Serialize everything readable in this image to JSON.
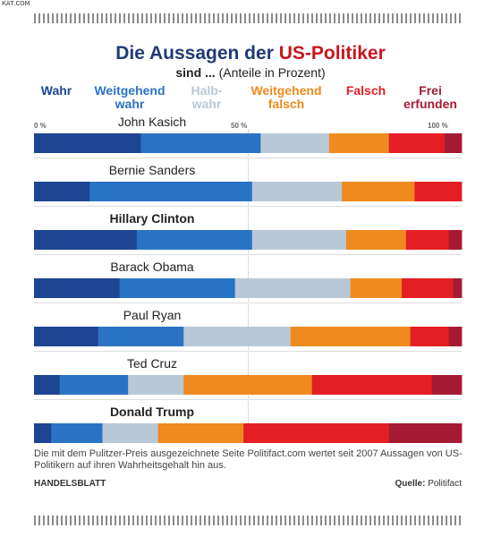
{
  "corner_logo": "КАТ.COM",
  "title": {
    "part1": "Die Aussagen der",
    "part2": "US-Politiker"
  },
  "subtitle": {
    "bold": "sind ...",
    "rest": "(Anteile in Prozent)"
  },
  "colors": {
    "Wahr": "#1e4494",
    "Weitgehend wahr": "#2a73c4",
    "Halb-wahr": "#b9c8d6",
    "Weitgehend falsch": "#ee8a1e",
    "Falsch": "#e31e24",
    "Frei erfunden": "#a51b32"
  },
  "axis": {
    "tick0": "0 %",
    "tick50": "50 %",
    "tick100": "100 %"
  },
  "chart_data": {
    "type": "bar",
    "orientation": "horizontal",
    "stacked": true,
    "title": "Die Aussagen der US-Politiker",
    "xlim": [
      0,
      100
    ],
    "categories": [
      "John Kasich",
      "Bernie Sanders",
      "Hillary Clinton",
      "Barack Obama",
      "Paul Ryan",
      "Ted Cruz",
      "Donald Trump"
    ],
    "series": [
      {
        "name": "Wahr",
        "label": "Wahr",
        "values": [
          25,
          13,
          24,
          20,
          15,
          6,
          4
        ]
      },
      {
        "name": "Weitgehend wahr",
        "label": "Weitgehend\nwahr",
        "values": [
          28,
          38,
          27,
          27,
          20,
          16,
          12
        ]
      },
      {
        "name": "Halb-wahr",
        "label": "Halb-\nwahr",
        "values": [
          16,
          21,
          22,
          27,
          25,
          13,
          13
        ]
      },
      {
        "name": "Weitgehend falsch",
        "label": "Weitgehend\nfalsch",
        "values": [
          14,
          17,
          14,
          12,
          28,
          30,
          20
        ]
      },
      {
        "name": "Falsch",
        "label": "Falsch",
        "values": [
          13,
          11,
          10,
          12,
          9,
          28,
          34
        ]
      },
      {
        "name": "Frei erfunden",
        "label": "Frei\nerfunden",
        "values": [
          4,
          0,
          3,
          2,
          3,
          7,
          17
        ]
      }
    ],
    "bold_categories": [
      "Hillary Clinton",
      "Donald Trump"
    ]
  },
  "footnote": "Die mit dem Pulitzer-Preis ausgezeichnete Seite Politifact.com wertet seit 2007 Aussagen von US-Politikern auf ihren Wahrheitsgehalt hin aus.",
  "source": {
    "publisher": "HANDELSBLATT",
    "label": "Quelle:",
    "value": "Politifact"
  }
}
